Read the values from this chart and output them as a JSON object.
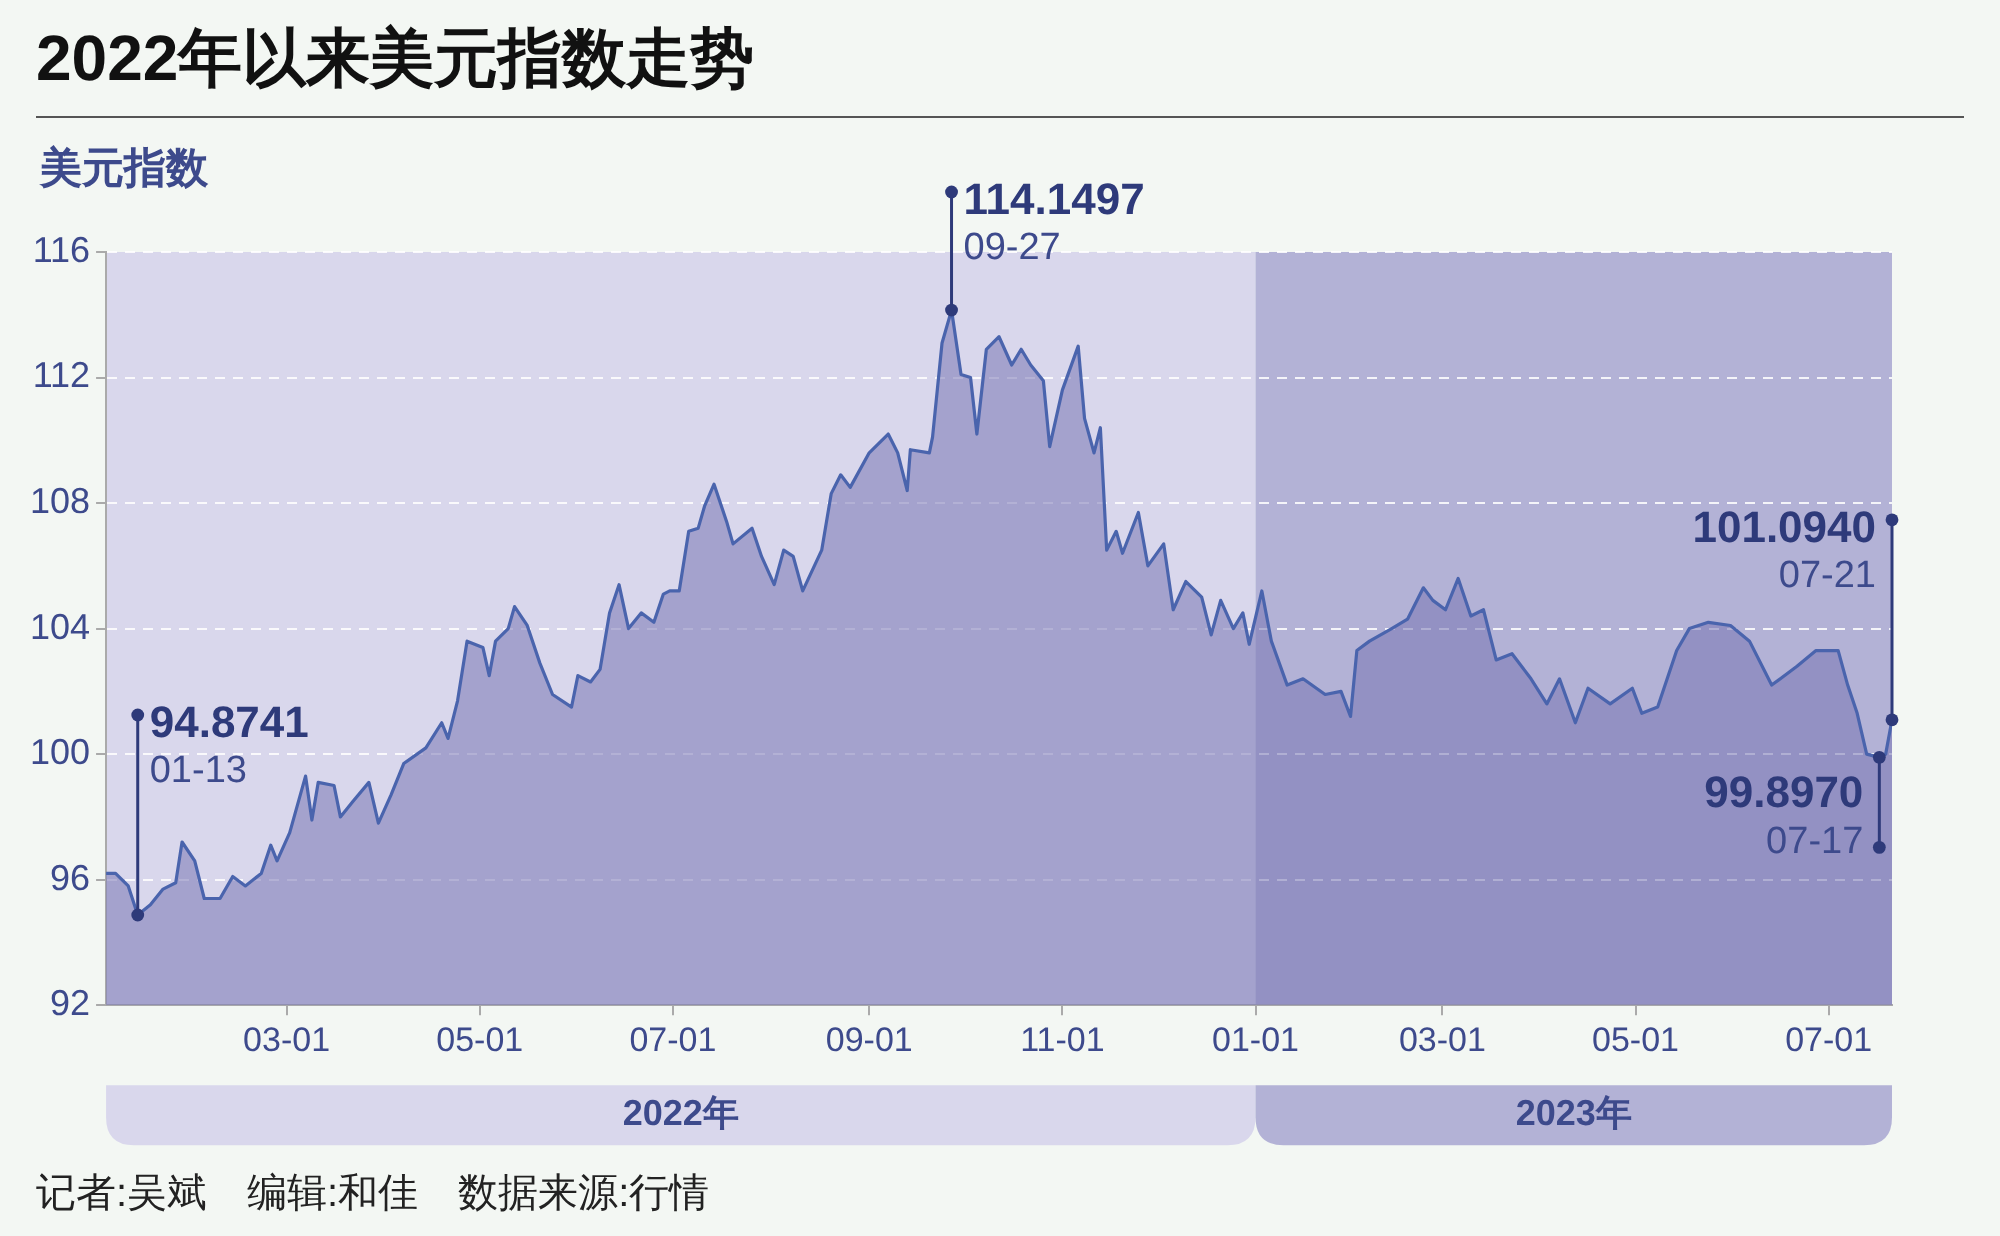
{
  "chart_data": {
    "type": "area",
    "title": "2022年以来美元指数走势",
    "ylabel": "美元指数",
    "x": [
      "2022-01-03",
      "2022-01-06",
      "2022-01-10",
      "2022-01-13",
      "2022-01-17",
      "2022-01-21",
      "2022-01-25",
      "2022-01-27",
      "2022-01-31",
      "2022-02-03",
      "2022-02-08",
      "2022-02-12",
      "2022-02-16",
      "2022-02-21",
      "2022-02-24",
      "2022-02-26",
      "2022-03-02",
      "2022-03-07",
      "2022-03-09",
      "2022-03-11",
      "2022-03-16",
      "2022-03-18",
      "2022-03-22",
      "2022-03-27",
      "2022-03-30",
      "2022-04-03",
      "2022-04-07",
      "2022-04-14",
      "2022-04-19",
      "2022-04-21",
      "2022-04-24",
      "2022-04-27",
      "2022-05-02",
      "2022-05-04",
      "2022-05-06",
      "2022-05-10",
      "2022-05-12",
      "2022-05-16",
      "2022-05-20",
      "2022-05-24",
      "2022-05-30",
      "2022-06-01",
      "2022-06-05",
      "2022-06-08",
      "2022-06-11",
      "2022-06-14",
      "2022-06-17",
      "2022-06-21",
      "2022-06-25",
      "2022-06-28",
      "2022-06-30",
      "2022-07-03",
      "2022-07-06",
      "2022-07-09",
      "2022-07-11",
      "2022-07-14",
      "2022-07-18",
      "2022-07-20",
      "2022-07-26",
      "2022-07-29",
      "2022-08-02",
      "2022-08-05",
      "2022-08-08",
      "2022-08-11",
      "2022-08-17",
      "2022-08-20",
      "2022-08-23",
      "2022-08-26",
      "2022-09-01",
      "2022-09-07",
      "2022-09-10",
      "2022-09-13",
      "2022-09-14",
      "2022-09-20",
      "2022-09-21",
      "2022-09-24",
      "2022-09-27",
      "2022-09-30",
      "2022-10-03",
      "2022-10-05",
      "2022-10-08",
      "2022-10-12",
      "2022-10-16",
      "2022-10-19",
      "2022-10-22",
      "2022-10-26",
      "2022-10-28",
      "2022-11-01",
      "2022-11-06",
      "2022-11-08",
      "2022-11-11",
      "2022-11-13",
      "2022-11-15",
      "2022-11-18",
      "2022-11-20",
      "2022-11-25",
      "2022-11-28",
      "2022-12-03",
      "2022-12-06",
      "2022-12-10",
      "2022-12-15",
      "2022-12-18",
      "2022-12-21",
      "2022-12-25",
      "2022-12-28",
      "2022-12-30",
      "2023-01-03",
      "2023-01-06",
      "2023-01-11",
      "2023-01-16",
      "2023-01-23",
      "2023-01-28",
      "2023-01-31",
      "2023-02-02",
      "2023-02-06",
      "2023-02-13",
      "2023-02-18",
      "2023-02-23",
      "2023-02-26",
      "2023-03-02",
      "2023-03-06",
      "2023-03-10",
      "2023-03-14",
      "2023-03-18",
      "2023-03-23",
      "2023-03-29",
      "2023-04-03",
      "2023-04-07",
      "2023-04-12",
      "2023-04-16",
      "2023-04-23",
      "2023-04-30",
      "2023-05-03",
      "2023-05-08",
      "2023-05-14",
      "2023-05-18",
      "2023-05-24",
      "2023-05-31",
      "2023-06-06",
      "2023-06-13",
      "2023-06-21",
      "2023-06-27",
      "2023-07-04",
      "2023-07-07",
      "2023-07-10",
      "2023-07-13",
      "2023-07-17",
      "2023-07-19",
      "2023-07-21"
    ],
    "series": [
      {
        "color": "#4a64ad",
        "values": [
          96.2,
          96.2,
          95.8,
          94.8741,
          95.2,
          95.7,
          95.9,
          97.2,
          96.6,
          95.4,
          95.4,
          96.1,
          95.8,
          96.2,
          97.1,
          96.6,
          97.5,
          99.3,
          97.9,
          99.1,
          99.0,
          98.0,
          98.5,
          99.1,
          97.8,
          98.7,
          99.7,
          100.2,
          101.0,
          100.5,
          101.7,
          103.6,
          103.4,
          102.5,
          103.6,
          104.0,
          104.7,
          104.1,
          102.9,
          101.9,
          101.5,
          102.5,
          102.3,
          102.7,
          104.5,
          105.4,
          104.0,
          104.5,
          104.2,
          105.1,
          105.2,
          105.2,
          107.1,
          107.2,
          107.9,
          108.6,
          107.4,
          106.7,
          107.2,
          106.3,
          105.4,
          106.5,
          106.3,
          105.2,
          106.5,
          108.3,
          108.9,
          108.5,
          109.6,
          110.2,
          109.6,
          108.4,
          109.7,
          109.6,
          110.1,
          113.1,
          114.1497,
          112.1,
          112.0,
          110.2,
          112.9,
          113.3,
          112.4,
          112.9,
          112.4,
          111.9,
          109.8,
          111.6,
          113.0,
          110.7,
          109.6,
          110.4,
          106.5,
          107.1,
          106.4,
          107.7,
          106.0,
          106.7,
          104.6,
          105.5,
          105.0,
          103.8,
          104.9,
          104.0,
          104.5,
          103.5,
          105.2,
          103.6,
          102.2,
          102.4,
          101.9,
          102.0,
          101.2,
          103.3,
          103.6,
          104.0,
          104.3,
          105.3,
          104.9,
          104.6,
          105.6,
          104.4,
          104.6,
          103.0,
          103.2,
          102.4,
          101.6,
          102.4,
          101.0,
          102.1,
          101.6,
          102.1,
          101.3,
          101.5,
          103.3,
          104.0,
          104.2,
          104.1,
          103.6,
          102.2,
          102.8,
          103.3,
          103.3,
          102.2,
          101.3,
          100.0,
          99.897,
          100.0,
          101.094
        ]
      }
    ],
    "xlim": [
      "2022-01-03",
      "2023-07-21"
    ],
    "xticks": [
      {
        "value": "2022-03-01",
        "label": "03-01"
      },
      {
        "value": "2022-05-01",
        "label": "05-01"
      },
      {
        "value": "2022-07-01",
        "label": "07-01"
      },
      {
        "value": "2022-09-01",
        "label": "09-01"
      },
      {
        "value": "2022-11-01",
        "label": "11-01"
      },
      {
        "value": "2023-01-01",
        "label": "01-01"
      },
      {
        "value": "2023-03-01",
        "label": "03-01"
      },
      {
        "value": "2023-05-01",
        "label": "05-01"
      },
      {
        "value": "2023-07-01",
        "label": "07-01"
      }
    ],
    "ylim": [
      92,
      116
    ],
    "yticks": [
      92,
      96,
      100,
      104,
      108,
      112,
      116
    ],
    "grid": "y",
    "bands": [
      {
        "axis": "x",
        "from": "2022-01-03",
        "to": "2023-01-01",
        "label": "2022年",
        "color": "#d9d7ec"
      },
      {
        "axis": "x",
        "from": "2023-01-01",
        "to": "2023-07-21",
        "label": "2023年",
        "color": "#b3b2d6"
      }
    ],
    "annotations": [
      {
        "text": "94.8741\n01-13",
        "x": "2022-01-13",
        "y": 94.8741
      },
      {
        "text": "114.1497\n09-27",
        "x": "2022-09-27",
        "y": 114.1497
      },
      {
        "text": "101.0940\n07-21",
        "x": "2023-07-21",
        "y": 101.094
      },
      {
        "text": "99.8970\n07-17",
        "x": "2023-07-17",
        "y": 99.897
      },
      "记者:吴斌　编辑:和佳　数据来源:行情"
    ]
  }
}
